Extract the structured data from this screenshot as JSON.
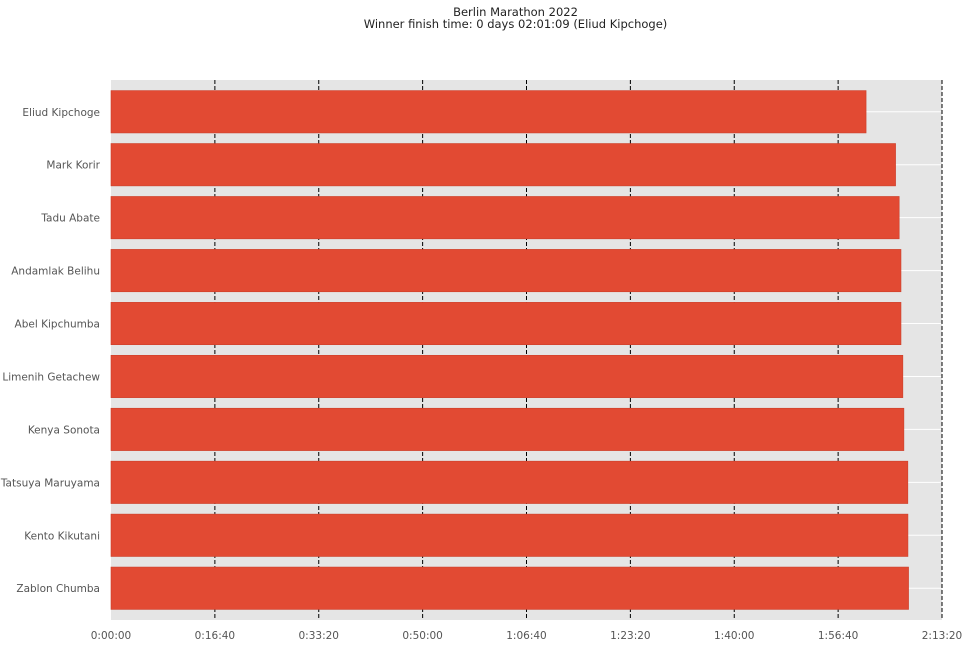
{
  "chart_data": {
    "type": "bar",
    "orientation": "horizontal",
    "title": "Berlin Marathon 2022",
    "subtitle": "Winner finish time: 0 days 02:01:09 (Eliud Kipchoge)",
    "xlabel": "",
    "ylabel": "",
    "x_unit": "seconds",
    "xlim": [
      0,
      8000
    ],
    "x_tick_values": [
      0,
      1000,
      2000,
      3000,
      4000,
      5000,
      6000,
      7000,
      8000
    ],
    "x_tick_labels": [
      "0:00:00",
      "0:16:40",
      "0:33:20",
      "0:50:00",
      "1:06:40",
      "1:23:20",
      "1:40:00",
      "1:56:40",
      "2:13:20"
    ],
    "categories": [
      "Eliud Kipchoge",
      "Mark Korir",
      "Tadu Abate",
      "Andamlak Belihu",
      "Abel Kipchumba",
      "Limenih Getachew",
      "Kenya Sonota",
      "Tatsuya Maruyama",
      "Kento Kikutani",
      "Zablon Chumba"
    ],
    "values": [
      7269,
      7553,
      7588,
      7605,
      7605,
      7623,
      7633,
      7671,
      7672,
      7678
    ],
    "bar_color": "#E24A33",
    "background_color": "#E5E5E5",
    "grid": true,
    "vertical_reference_lines": "dashed black at every x tick"
  }
}
